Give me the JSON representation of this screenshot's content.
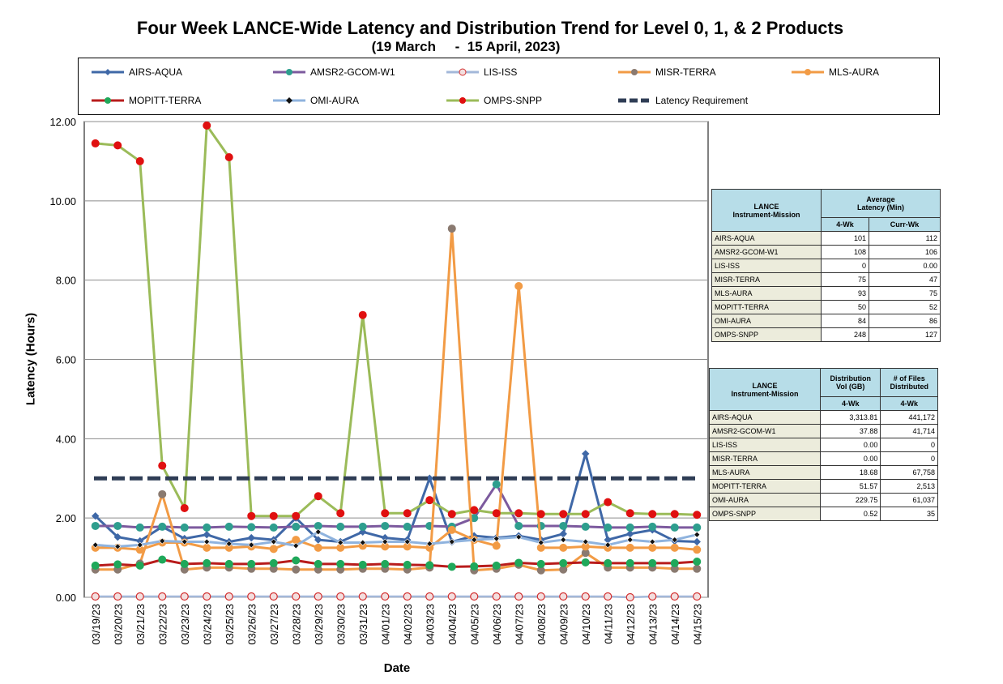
{
  "chart_data": {
    "type": "line",
    "title": "Four Week LANCE-Wide Latency and Distribution Trend for Level 0, 1, & 2 Products",
    "subtitle": "(19 March     -  15 April, 2023)",
    "xlabel": "Date",
    "ylabel": "Latency (Hours)",
    "ylim": [
      0,
      12
    ],
    "yticks": [
      "0.00",
      "2.00",
      "4.00",
      "6.00",
      "8.00",
      "10.00",
      "12.00"
    ],
    "grid": "horizontal",
    "legend_position": "top",
    "categories": [
      "03/19/23",
      "03/20/23",
      "03/21/23",
      "03/22/23",
      "03/23/23",
      "03/24/23",
      "03/25/23",
      "03/26/23",
      "03/27/23",
      "03/28/23",
      "03/29/23",
      "03/30/23",
      "03/31/23",
      "04/01/23",
      "04/02/23",
      "04/03/23",
      "04/04/23",
      "04/05/23",
      "04/06/23",
      "04/07/23",
      "04/08/23",
      "04/09/23",
      "04/10/23",
      "04/11/23",
      "04/12/23",
      "04/13/23",
      "04/14/23",
      "04/15/23"
    ],
    "series": [
      {
        "name": "AIRS-AQUA",
        "color": "#3f68a7",
        "marker": "diamond",
        "marker_color": "#3f68a7",
        "values": [
          2.05,
          1.52,
          1.42,
          1.78,
          1.48,
          1.58,
          1.4,
          1.5,
          1.45,
          2.0,
          1.45,
          1.4,
          1.65,
          1.5,
          1.45,
          3.0,
          1.4,
          1.55,
          1.5,
          1.55,
          1.45,
          1.6,
          3.62,
          1.45,
          1.6,
          1.7,
          1.42,
          1.4
        ]
      },
      {
        "name": "AMSR2-GCOM-W1",
        "color": "#7c5a9e",
        "marker": "circle",
        "marker_color": "#2e9e8e",
        "values": [
          1.8,
          1.8,
          1.76,
          1.78,
          1.76,
          1.76,
          1.78,
          1.77,
          1.76,
          1.78,
          1.8,
          1.78,
          1.78,
          1.8,
          1.78,
          1.8,
          1.78,
          2.0,
          2.85,
          1.8,
          1.8,
          1.8,
          1.78,
          1.76,
          1.76,
          1.78,
          1.76,
          1.76
        ]
      },
      {
        "name": "LIS-ISS",
        "color": "#a3b8d9",
        "marker": "circle-open",
        "marker_color": "#d33030",
        "values": [
          0.02,
          0.02,
          0.02,
          0.02,
          0.02,
          0.02,
          0.02,
          0.02,
          0.02,
          0.02,
          0.02,
          0.02,
          0.02,
          0.02,
          0.02,
          0.02,
          0.02,
          0.02,
          0.02,
          0.02,
          0.02,
          0.02,
          0.02,
          0.02,
          0.0,
          0.02,
          0.02,
          0.02
        ]
      },
      {
        "name": "MISR-TERRA",
        "color": "#f29b45",
        "marker": "circle",
        "marker_color": "#8a7a70",
        "values": [
          0.7,
          0.7,
          0.85,
          2.6,
          0.7,
          0.75,
          0.75,
          0.72,
          0.72,
          0.7,
          0.7,
          0.7,
          0.72,
          0.72,
          0.7,
          0.75,
          9.3,
          0.68,
          0.72,
          0.82,
          0.68,
          0.7,
          1.12,
          0.75,
          0.75,
          0.75,
          0.72,
          0.72
        ]
      },
      {
        "name": "MLS-AURA",
        "color": "#f29b45",
        "marker": "circle",
        "marker_color": "#f29b45",
        "values": [
          1.25,
          1.25,
          1.2,
          1.38,
          1.38,
          1.25,
          1.25,
          1.28,
          1.22,
          1.45,
          1.25,
          1.25,
          1.3,
          1.28,
          1.28,
          1.25,
          1.7,
          1.45,
          1.3,
          7.85,
          1.25,
          1.25,
          1.28,
          1.25,
          1.25,
          1.25,
          1.25,
          1.2
        ]
      },
      {
        "name": "MOPITT-TERRA",
        "color": "#b81c1c",
        "marker": "circle",
        "marker_color": "#1fa85a",
        "values": [
          0.8,
          0.83,
          0.8,
          0.95,
          0.84,
          0.86,
          0.84,
          0.84,
          0.86,
          0.93,
          0.84,
          0.84,
          0.82,
          0.84,
          0.82,
          0.81,
          0.77,
          0.78,
          0.8,
          0.87,
          0.84,
          0.86,
          0.88,
          0.86,
          0.86,
          0.86,
          0.86,
          0.9
        ]
      },
      {
        "name": "OMI-AURA",
        "color": "#8fb3de",
        "marker": "diamond-small",
        "marker_color": "#111111",
        "values": [
          1.32,
          1.28,
          1.32,
          1.42,
          1.4,
          1.4,
          1.35,
          1.32,
          1.4,
          1.3,
          1.65,
          1.38,
          1.38,
          1.4,
          1.4,
          1.35,
          1.4,
          1.45,
          1.48,
          1.52,
          1.38,
          1.45,
          1.4,
          1.32,
          1.45,
          1.4,
          1.45,
          1.58
        ]
      },
      {
        "name": "OMPS-SNPP",
        "color": "#9bbb59",
        "marker": "circle",
        "marker_color": "#e01010",
        "values": [
          11.45,
          11.4,
          11.0,
          3.32,
          2.25,
          11.9,
          11.1,
          2.05,
          2.05,
          2.05,
          2.55,
          2.12,
          7.12,
          2.12,
          2.12,
          2.45,
          2.1,
          2.2,
          2.12,
          2.12,
          2.1,
          2.1,
          2.1,
          2.4,
          2.12,
          2.1,
          2.1,
          2.08
        ]
      },
      {
        "name": "Latency Requirement",
        "color": "#2f3d55",
        "marker": "none",
        "dashed": true,
        "values": [
          3.0,
          3.0,
          3.0,
          3.0,
          3.0,
          3.0,
          3.0,
          3.0,
          3.0,
          3.0,
          3.0,
          3.0,
          3.0,
          3.0,
          3.0,
          3.0,
          3.0,
          3.0,
          3.0,
          3.0,
          3.0,
          3.0,
          3.0,
          3.0,
          3.0,
          3.0,
          3.0,
          3.0
        ]
      }
    ]
  },
  "latency_table": {
    "header1": "LANCE\nInstrument-Mission",
    "header2": "Average\nLatency (Min)",
    "col1": "4-Wk",
    "col2": "Curr-Wk",
    "rows": [
      {
        "name": "AIRS-AQUA",
        "a": "101",
        "b": "112"
      },
      {
        "name": "AMSR2-GCOM-W1",
        "a": "108",
        "b": "106"
      },
      {
        "name": "LIS-ISS",
        "a": "0",
        "b": "0.00"
      },
      {
        "name": "MISR-TERRA",
        "a": "75",
        "b": "47"
      },
      {
        "name": "MLS-AURA",
        "a": "93",
        "b": "75"
      },
      {
        "name": "MOPITT-TERRA",
        "a": "50",
        "b": "52"
      },
      {
        "name": "OMI-AURA",
        "a": "84",
        "b": "86"
      },
      {
        "name": "OMPS-SNPP",
        "a": "248",
        "b": "127"
      }
    ]
  },
  "distribution_table": {
    "header1": "LANCE\nInstrument-Mission",
    "header2": "Distribution\nVol (GB)",
    "header3": "# of Files\nDistributed",
    "col1": "4-Wk",
    "col2": "4-Wk",
    "rows": [
      {
        "name": "AIRS-AQUA",
        "a": "3,313.81",
        "b": "441,172"
      },
      {
        "name": "AMSR2-GCOM-W1",
        "a": "37.88",
        "b": "41,714"
      },
      {
        "name": "LIS-ISS",
        "a": "0.00",
        "b": "0"
      },
      {
        "name": "MISR-TERRA",
        "a": "0.00",
        "b": "0"
      },
      {
        "name": "MLS-AURA",
        "a": "18.68",
        "b": "67,758"
      },
      {
        "name": "MOPITT-TERRA",
        "a": "51.57",
        "b": "2,513"
      },
      {
        "name": "OMI-AURA",
        "a": "229.75",
        "b": "61,037"
      },
      {
        "name": "OMPS-SNPP",
        "a": "0.52",
        "b": "35"
      }
    ]
  }
}
